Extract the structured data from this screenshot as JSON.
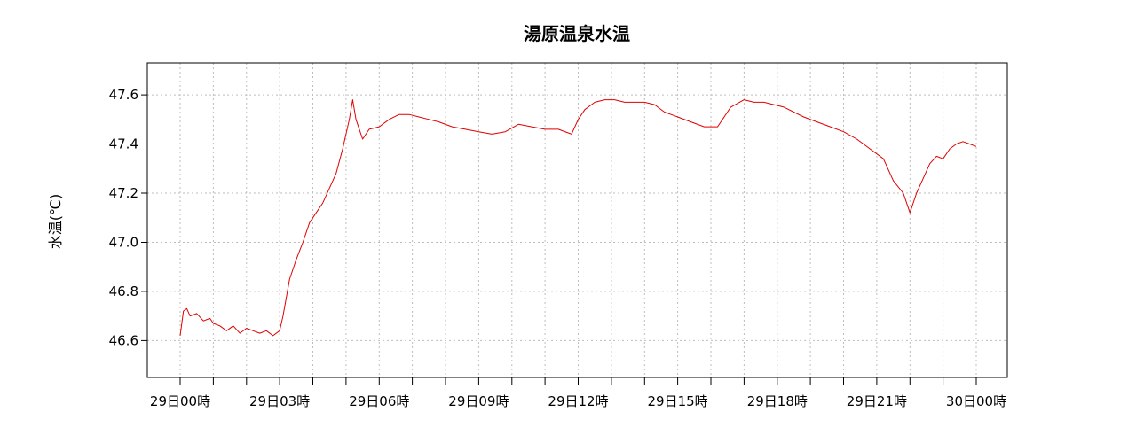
{
  "chart_data": {
    "type": "line",
    "title": "湯原温泉水温",
    "xlabel": "",
    "ylabel": "水温(℃)",
    "grid": true,
    "grid_style": "dotted",
    "line_color": "#e00000",
    "xlim": [
      0,
      24
    ],
    "ylim": [
      46.45,
      47.73
    ],
    "x_ticks_minor": [
      1,
      2,
      4,
      5,
      7,
      8,
      10,
      11,
      13,
      14,
      16,
      17,
      19,
      20,
      22,
      23
    ],
    "x_ticks": [
      {
        "value": 0,
        "label": "29日00時"
      },
      {
        "value": 3,
        "label": "29日03時"
      },
      {
        "value": 6,
        "label": "29日06時"
      },
      {
        "value": 9,
        "label": "29日09時"
      },
      {
        "value": 12,
        "label": "29日12時"
      },
      {
        "value": 15,
        "label": "29日15時"
      },
      {
        "value": 18,
        "label": "29日18時"
      },
      {
        "value": 21,
        "label": "29日21時"
      },
      {
        "value": 24,
        "label": "30日00時"
      }
    ],
    "y_ticks": [
      {
        "value": 46.6,
        "label": "46.6"
      },
      {
        "value": 46.8,
        "label": "46.8"
      },
      {
        "value": 47.0,
        "label": "47.0"
      },
      {
        "value": 47.2,
        "label": "47.2"
      },
      {
        "value": 47.4,
        "label": "47.4"
      },
      {
        "value": 47.6,
        "label": "47.6"
      }
    ],
    "series": [
      {
        "color": "#e00000",
        "x": [
          0,
          0.1,
          0.2,
          0.3,
          0.5,
          0.7,
          0.9,
          1.0,
          1.2,
          1.4,
          1.6,
          1.8,
          2.0,
          2.2,
          2.4,
          2.6,
          2.8,
          3.0,
          3.1,
          3.3,
          3.5,
          3.7,
          3.9,
          4.1,
          4.3,
          4.5,
          4.7,
          4.9,
          5.1,
          5.2,
          5.3,
          5.5,
          5.7,
          6.0,
          6.3,
          6.6,
          6.9,
          7.2,
          7.5,
          7.8,
          8.2,
          8.6,
          9.0,
          9.4,
          9.8,
          10.2,
          10.6,
          11.0,
          11.4,
          11.8,
          12.0,
          12.2,
          12.5,
          12.8,
          13.1,
          13.4,
          13.7,
          14.0,
          14.3,
          14.6,
          15.0,
          15.4,
          15.8,
          16.2,
          16.6,
          17.0,
          17.3,
          17.6,
          17.9,
          18.2,
          18.5,
          18.8,
          19.2,
          19.6,
          20.0,
          20.4,
          20.8,
          21.2,
          21.5,
          21.8,
          22.0,
          22.2,
          22.4,
          22.6,
          22.8,
          23.0,
          23.2,
          23.4,
          23.6,
          23.8,
          24.0
        ],
        "y": [
          46.62,
          46.72,
          46.73,
          46.7,
          46.71,
          46.68,
          46.69,
          46.67,
          46.66,
          46.64,
          46.66,
          46.63,
          46.65,
          46.64,
          46.63,
          46.64,
          46.62,
          46.64,
          46.7,
          46.85,
          46.93,
          47.0,
          47.08,
          47.12,
          47.16,
          47.22,
          47.28,
          47.38,
          47.5,
          47.58,
          47.5,
          47.42,
          47.46,
          47.47,
          47.5,
          47.52,
          47.52,
          47.51,
          47.5,
          47.49,
          47.47,
          47.46,
          47.45,
          47.44,
          47.45,
          47.48,
          47.47,
          47.46,
          47.46,
          47.44,
          47.5,
          47.54,
          47.57,
          47.58,
          47.58,
          47.57,
          47.57,
          47.57,
          47.56,
          47.53,
          47.51,
          47.49,
          47.47,
          47.47,
          47.55,
          47.58,
          47.57,
          47.57,
          47.56,
          47.55,
          47.53,
          47.51,
          47.49,
          47.47,
          47.45,
          47.42,
          47.38,
          47.34,
          47.25,
          47.2,
          47.12,
          47.2,
          47.26,
          47.32,
          47.35,
          47.34,
          47.38,
          47.4,
          47.41,
          47.4,
          47.39
        ]
      }
    ]
  }
}
